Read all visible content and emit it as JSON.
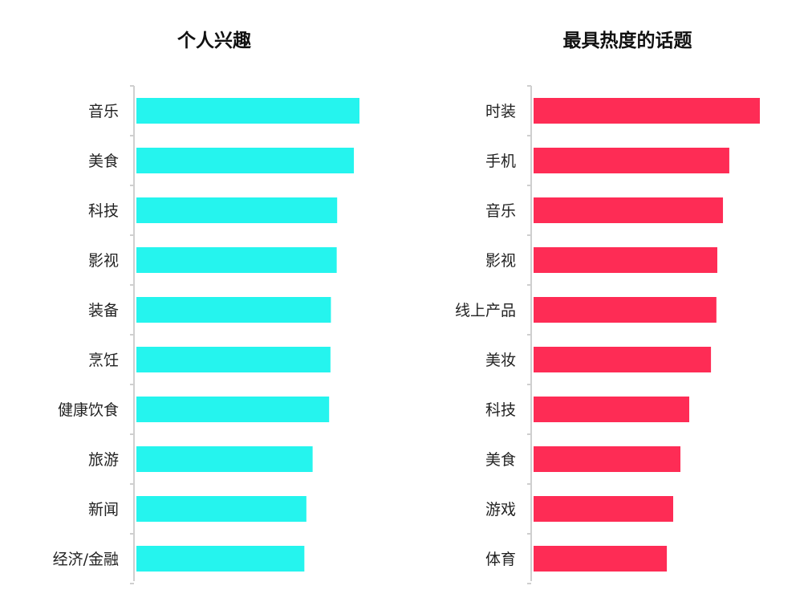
{
  "chart_data": [
    {
      "type": "bar",
      "orientation": "horizontal",
      "title": "个人兴趣",
      "categories": [
        "音乐",
        "美食",
        "科技",
        "影视",
        "装备",
        "烹饪",
        "健康饮食",
        "旅游",
        "新闻",
        "经济/金融"
      ],
      "values": [
        100,
        97.5,
        90,
        89.8,
        87.2,
        87,
        86.4,
        79,
        76.2,
        75.3
      ],
      "color": "#25f4ee",
      "xlim": [
        0,
        100
      ],
      "xlabel": "",
      "ylabel": "",
      "grid": false,
      "value_axis_visible": false
    },
    {
      "type": "bar",
      "orientation": "horizontal",
      "title": "最具热度的话题",
      "categories": [
        "时装",
        "手机",
        "音乐",
        "影视",
        "线上产品",
        "美妆",
        "科技",
        "美食",
        "游戏",
        "体育"
      ],
      "values": [
        100,
        86.5,
        83.7,
        81.2,
        80.8,
        78.4,
        68.8,
        64.9,
        61.7,
        58.9
      ],
      "color": "#fe2c55",
      "xlim": [
        0,
        100
      ],
      "xlabel": "",
      "ylabel": "",
      "grid": false,
      "value_axis_visible": false
    }
  ]
}
